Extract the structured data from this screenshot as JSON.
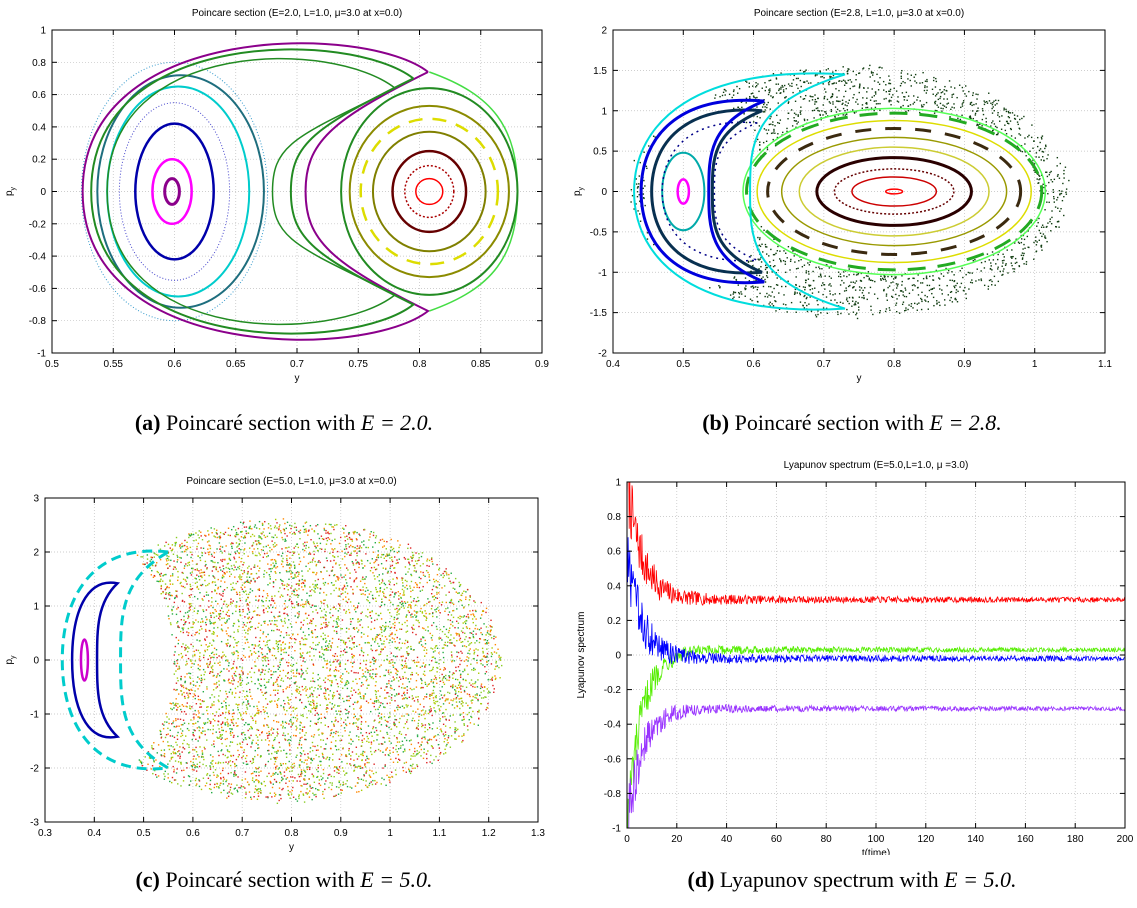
{
  "panels": [
    {
      "id": "a",
      "caption": {
        "tag": "(a)",
        "text": "Poincaré section with ",
        "eq": "E = 2.0."
      },
      "chart_data": {
        "type": "scatter",
        "title": "Poincare section (E=2.0, L=1.0, μ=3.0 at x=0.0)",
        "xlabel": "y",
        "ylabel": "p_y",
        "xlim": [
          0.5,
          0.9
        ],
        "ylim": [
          -1,
          1
        ],
        "xticks": [
          0.5,
          0.55,
          0.6,
          0.65,
          0.7,
          0.75,
          0.8,
          0.85,
          0.9
        ],
        "xtick_labels": [
          "0.5",
          "0.55",
          "0.6",
          "0.65",
          "0.7",
          "0.75",
          "0.8",
          "0.85",
          "0.9"
        ],
        "yticks": [
          -1,
          -0.8,
          -0.6,
          -0.4,
          -0.2,
          0,
          0.2,
          0.4,
          0.6,
          0.8,
          1
        ],
        "ytick_labels": [
          "-1",
          "-0.8",
          "-0.6",
          "-0.4",
          "-0.2",
          "0",
          "0.2",
          "0.4",
          "0.6",
          "0.8",
          "1"
        ],
        "grid": true,
        "curves": [
          {
            "kind": "ellipse",
            "cx": 0.598,
            "cy": 0,
            "rx": 0.006,
            "ry": 0.08,
            "color": "#8b008b",
            "width": 3
          },
          {
            "kind": "ellipse",
            "cx": 0.598,
            "cy": 0,
            "rx": 0.016,
            "ry": 0.2,
            "color": "#ff00ff",
            "width": 2.5
          },
          {
            "kind": "ellipse",
            "cx": 0.6,
            "cy": 0,
            "rx": 0.032,
            "ry": 0.42,
            "color": "#0000aa",
            "width": 2.5
          },
          {
            "kind": "ellipse",
            "cx": 0.6,
            "cy": 0,
            "rx": 0.045,
            "ry": 0.55,
            "color": "#4444cc",
            "width": 1,
            "dash": "1,2"
          },
          {
            "kind": "ellipse",
            "cx": 0.603,
            "cy": 0,
            "rx": 0.058,
            "ry": 0.65,
            "color": "#00cccc",
            "width": 2
          },
          {
            "kind": "ellipse",
            "cx": 0.605,
            "cy": 0,
            "rx": 0.068,
            "ry": 0.72,
            "color": "#1e6e7e",
            "width": 2
          },
          {
            "kind": "ellipse",
            "cx": 0.6,
            "cy": 0,
            "rx": 0.076,
            "ry": 0.8,
            "color": "#3399cc",
            "width": 1,
            "dash": "1,2"
          },
          {
            "kind": "leftloop",
            "x0": 0.525,
            "xs": 0.807,
            "ys": 0.74,
            "color": "#8b008b",
            "width": 2
          },
          {
            "kind": "leftloop",
            "x0": 0.532,
            "xs": 0.795,
            "ys": 0.7,
            "color": "#228b22",
            "width": 2
          },
          {
            "kind": "leftloop",
            "x0": 0.545,
            "xs": 0.78,
            "ys": 0.64,
            "color": "#228b22",
            "width": 1.5
          },
          {
            "kind": "rightloop",
            "x0": 0.735,
            "x1": 0.88,
            "ys": 0.74,
            "color": "#44dd44",
            "width": 1.5
          },
          {
            "kind": "ellipse",
            "cx": 0.808,
            "cy": 0,
            "rx": 0.072,
            "ry": 0.64,
            "color": "#228b22",
            "width": 2
          },
          {
            "kind": "ellipse",
            "cx": 0.808,
            "cy": 0,
            "rx": 0.065,
            "ry": 0.53,
            "color": "#8b8b00",
            "width": 2
          },
          {
            "kind": "ellipse",
            "cx": 0.808,
            "cy": 0,
            "rx": 0.056,
            "ry": 0.45,
            "color": "#dddd00",
            "width": 2.5,
            "dash": "14,10"
          },
          {
            "kind": "ellipse",
            "cx": 0.808,
            "cy": 0,
            "rx": 0.046,
            "ry": 0.37,
            "color": "#808000",
            "width": 2
          },
          {
            "kind": "ellipse",
            "cx": 0.808,
            "cy": 0,
            "rx": 0.03,
            "ry": 0.25,
            "color": "#660000",
            "width": 2.5
          },
          {
            "kind": "ellipse",
            "cx": 0.808,
            "cy": 0,
            "rx": 0.02,
            "ry": 0.16,
            "color": "#aa0000",
            "width": 1.5,
            "dash": "2,2"
          },
          {
            "kind": "ellipse",
            "cx": 0.808,
            "cy": 0,
            "rx": 0.011,
            "ry": 0.08,
            "color": "#ff0000",
            "width": 1.5
          }
        ]
      }
    },
    {
      "id": "b",
      "caption": {
        "tag": "(b)",
        "text": "Poincaré section with ",
        "eq": "E = 2.8."
      },
      "chart_data": {
        "type": "scatter",
        "title": "Poincare section (E=2.8, L=1.0, μ=3.0 at x=0.0)",
        "xlabel": "y",
        "ylabel": "p_y",
        "xlim": [
          0.4,
          1.1
        ],
        "ylim": [
          -2,
          2
        ],
        "xticks": [
          0.4,
          0.5,
          0.6,
          0.7,
          0.8,
          0.9,
          1,
          1.1
        ],
        "xtick_labels": [
          "0.4",
          "0.5",
          "0.6",
          "0.7",
          "0.8",
          "0.9",
          "1",
          "1.1"
        ],
        "yticks": [
          -2,
          -1.5,
          -1,
          -0.5,
          0,
          0.5,
          1,
          1.5,
          2
        ],
        "ytick_labels": [
          "-2",
          "-1.5",
          "-1",
          "-0.5",
          "0",
          "0.5",
          "1",
          "1.5",
          "2"
        ],
        "grid": true,
        "chaos": {
          "cx": 0.735,
          "cy": 0,
          "rx": 0.31,
          "ry": 1.55,
          "color": "#0e3b0e",
          "count": 4200
        },
        "curves": [
          {
            "kind": "ellipse",
            "cx": 0.8,
            "cy": 0,
            "rx": 0.012,
            "ry": 0.03,
            "color": "#ff0000",
            "width": 1.5
          },
          {
            "kind": "ellipse",
            "cx": 0.8,
            "cy": 0,
            "rx": 0.06,
            "ry": 0.18,
            "color": "#cc0000",
            "width": 1.5
          },
          {
            "kind": "ellipse",
            "cx": 0.8,
            "cy": 0,
            "rx": 0.085,
            "ry": 0.28,
            "color": "#660000",
            "width": 1.5,
            "dash": "2,2"
          },
          {
            "kind": "ellipse",
            "cx": 0.8,
            "cy": 0,
            "rx": 0.11,
            "ry": 0.42,
            "color": "#2a0000",
            "width": 3
          },
          {
            "kind": "ellipse",
            "cx": 0.8,
            "cy": 0,
            "rx": 0.135,
            "ry": 0.55,
            "color": "#cccc33",
            "width": 1.5
          },
          {
            "kind": "ellipse",
            "cx": 0.8,
            "cy": 0,
            "rx": 0.16,
            "ry": 0.67,
            "color": "#999900",
            "width": 1.5
          },
          {
            "kind": "ellipse",
            "cx": 0.8,
            "cy": 0,
            "rx": 0.18,
            "ry": 0.78,
            "color": "#3b2a10",
            "width": 3,
            "dash": "16,14"
          },
          {
            "kind": "ellipse",
            "cx": 0.8,
            "cy": 0,
            "rx": 0.195,
            "ry": 0.88,
            "color": "#dddd00",
            "width": 1.5
          },
          {
            "kind": "ellipse",
            "cx": 0.8,
            "cy": 0,
            "rx": 0.21,
            "ry": 0.97,
            "color": "#22aa22",
            "width": 3,
            "dash": "18,12"
          },
          {
            "kind": "ellipse",
            "cx": 0.8,
            "cy": 0,
            "rx": 0.215,
            "ry": 1.03,
            "color": "#55ff55",
            "width": 1.5
          },
          {
            "kind": "ellipse",
            "cx": 0.5,
            "cy": 0,
            "rx": 0.008,
            "ry": 0.15,
            "color": "#ff00ff",
            "width": 2.5
          },
          {
            "kind": "ellipse",
            "cx": 0.5,
            "cy": 0,
            "rx": 0.03,
            "ry": 0.48,
            "color": "#00aaaa",
            "width": 2
          },
          {
            "kind": "crescent",
            "x0": 0.47,
            "xs": 0.605,
            "ys": 0.85,
            "color": "#000088",
            "width": 1.5,
            "dash": "2,4"
          },
          {
            "kind": "crescent",
            "x0": 0.455,
            "xs": 0.612,
            "ys": 1.0,
            "color": "#083050",
            "width": 3
          },
          {
            "kind": "crescent",
            "x0": 0.44,
            "xs": 0.615,
            "ys": 1.12,
            "color": "#0000dd",
            "width": 3
          },
          {
            "kind": "crescent",
            "x0": 0.43,
            "xs": 0.73,
            "ys": 1.45,
            "color": "#00dddd",
            "width": 2
          }
        ]
      }
    },
    {
      "id": "c",
      "caption": {
        "tag": "(c)",
        "text": "Poincaré section with ",
        "eq": "E = 5.0."
      },
      "chart_data": {
        "type": "scatter",
        "title": "Poincare section (E=5.0, L=1.0, μ=3.0 at x=0.0)",
        "xlabel": "y",
        "ylabel": "p_y",
        "xlim": [
          0.3,
          1.3
        ],
        "ylim": [
          -3,
          3
        ],
        "xticks": [
          0.3,
          0.4,
          0.5,
          0.6,
          0.7,
          0.8,
          0.9,
          1,
          1.1,
          1.2,
          1.3
        ],
        "xtick_labels": [
          "0.3",
          "0.4",
          "0.5",
          "0.6",
          "0.7",
          "0.8",
          "0.9",
          "1",
          "1.1",
          "1.2",
          "1.3"
        ],
        "yticks": [
          -3,
          -2,
          -1,
          0,
          1,
          2,
          3
        ],
        "ytick_labels": [
          "-3",
          "-2",
          "-1",
          "0",
          "1",
          "2",
          "3"
        ],
        "grid": true,
        "chaos": {
          "cx": 0.78,
          "cy": 0,
          "rx": 0.44,
          "ry": 2.6,
          "colors": [
            "#88cc22",
            "#ff8800",
            "#22aa44",
            "#dd2222",
            "#aacc00"
          ],
          "count": 6500
        },
        "curves": [
          {
            "kind": "ellipse",
            "cx": 0.38,
            "cy": 0,
            "rx": 0.007,
            "ry": 0.38,
            "color": "#cc00cc",
            "width": 2.5
          },
          {
            "kind": "crescent",
            "x0": 0.355,
            "xs": 0.447,
            "ys": 1.42,
            "color": "#0000aa",
            "width": 2.5
          },
          {
            "kind": "crescent",
            "x0": 0.335,
            "xs": 0.55,
            "ys": 2.0,
            "color": "#00cccc",
            "width": 3,
            "dash": "10,6"
          }
        ]
      }
    },
    {
      "id": "d",
      "caption": {
        "tag": "(d)",
        "text": "Lyapunov spectrum with ",
        "eq": "E = 5.0."
      },
      "chart_data": {
        "type": "line",
        "title": "Lyapunov spectrum (E=5.0,L=1.0, μ =3.0)",
        "xlabel": "t(time)",
        "ylabel": "Lyapunov spectrum",
        "xlim": [
          0,
          200
        ],
        "ylim": [
          -1,
          1
        ],
        "xticks": [
          0,
          20,
          40,
          60,
          80,
          100,
          120,
          140,
          160,
          180,
          200
        ],
        "xtick_labels": [
          "0",
          "20",
          "40",
          "60",
          "80",
          "100",
          "120",
          "140",
          "160",
          "180",
          "200"
        ],
        "yticks": [
          -1,
          -0.8,
          -0.6,
          -0.4,
          -0.2,
          0,
          0.2,
          0.4,
          0.6,
          0.8,
          1
        ],
        "ytick_labels": [
          "-1",
          "-0.8",
          "-0.6",
          "-0.4",
          "-0.2",
          "0",
          "0.2",
          "0.4",
          "0.6",
          "0.8",
          "1"
        ],
        "grid": true,
        "series": [
          {
            "color": "#ff0000",
            "final": 0.32,
            "start": 1.0,
            "noise": 0.035
          },
          {
            "color": "#55ee00",
            "final": 0.03,
            "start": -1.0,
            "noise": 0.03
          },
          {
            "color": "#0000ff",
            "final": -0.02,
            "start": 0.55,
            "noise": 0.035
          },
          {
            "color": "#9933ff",
            "final": -0.31,
            "start": -1.0,
            "noise": 0.03
          }
        ]
      }
    }
  ]
}
